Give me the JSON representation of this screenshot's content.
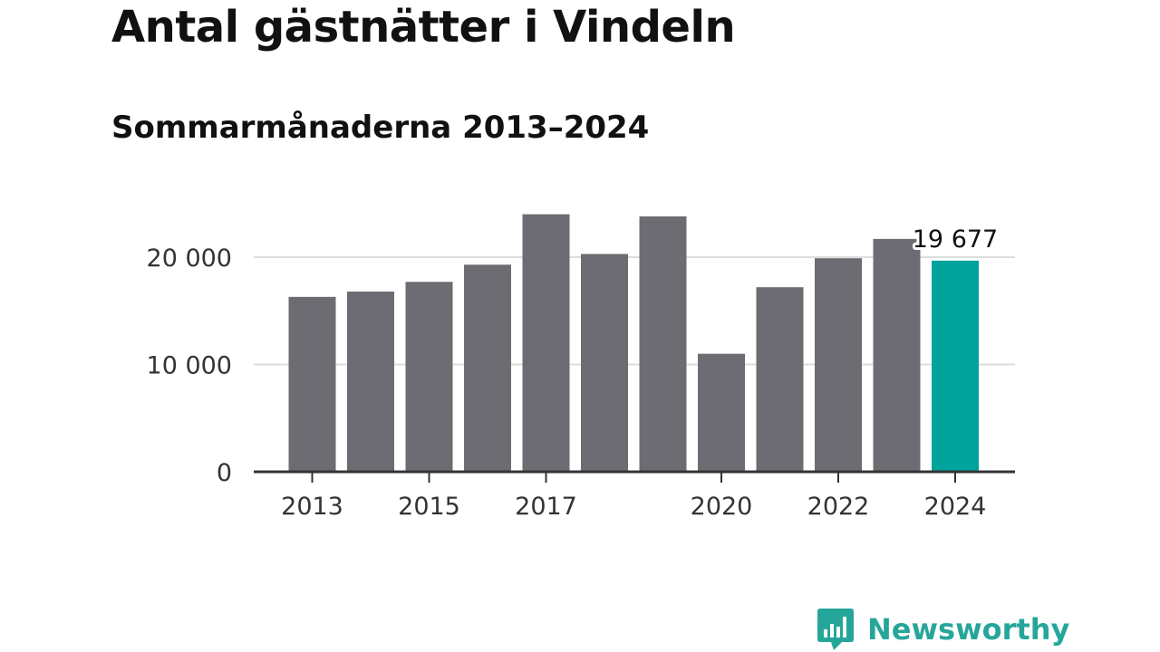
{
  "header": {
    "title": "Antal gästnätter i Vindeln",
    "subtitle": "Sommarmånaderna 2013–2024"
  },
  "brand": {
    "name": "Newsworthy",
    "icon": "newsworthy-logo-icon",
    "color": "#26a69a"
  },
  "colors": {
    "bar": "#6d6c72",
    "highlight": "#00a39b",
    "grid": "#dddddd",
    "axis": "#333333"
  },
  "chart_data": {
    "type": "bar",
    "title": "Antal gästnätter i Vindeln",
    "subtitle": "Sommarmånaderna 2013–2024",
    "xlabel": "",
    "ylabel": "",
    "categories": [
      2013,
      2014,
      2015,
      2016,
      2017,
      2018,
      2019,
      2020,
      2021,
      2022,
      2023,
      2024
    ],
    "values": [
      16300,
      16800,
      17700,
      19300,
      24000,
      20300,
      23800,
      11000,
      17200,
      19900,
      21700,
      19677
    ],
    "highlight_index": 11,
    "value_labels": [
      {
        "index": 11,
        "text": "19 677"
      }
    ],
    "x_tick_labels": [
      "2013",
      "2015",
      "2017",
      "2020",
      "2022",
      "2024"
    ],
    "x_tick_values": [
      2013,
      2015,
      2017,
      2020,
      2022,
      2024
    ],
    "y_ticks": [
      0,
      10000,
      20000
    ],
    "y_tick_labels": [
      "0",
      "10 000",
      "20 000"
    ],
    "ylim": [
      0,
      24000
    ],
    "grid": true,
    "legend": "none"
  }
}
